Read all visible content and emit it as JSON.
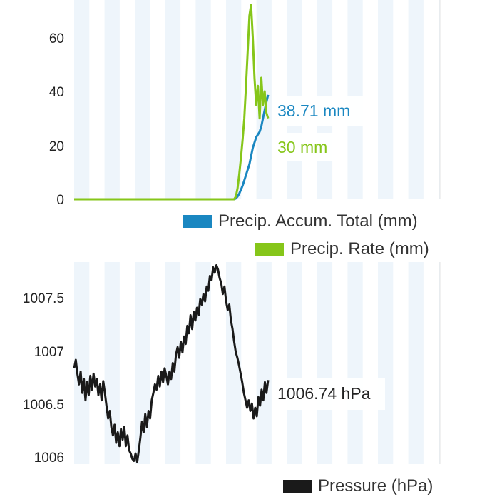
{
  "chart_data": [
    {
      "type": "line",
      "title": "",
      "xlabel": "",
      "ylabel": "",
      "ylim": [
        0,
        72
      ],
      "yticks": [
        "0",
        "20",
        "40",
        "60"
      ],
      "grid": "vertical alternating stripes",
      "legend_placement": "bottom-right",
      "series": [
        {
          "name": "Precip. Accum. Total (mm)",
          "color": "#1a87c1",
          "current_label": "38.71 mm",
          "values": [
            0,
            0,
            0,
            0,
            0,
            0,
            0,
            0,
            0,
            0,
            0,
            0,
            0,
            0,
            0,
            0,
            0,
            0,
            0,
            0,
            0,
            0,
            0,
            0,
            0,
            0,
            0,
            0,
            0,
            0,
            0,
            0,
            0,
            0,
            0,
            0,
            0,
            0,
            0,
            0,
            0,
            0,
            0,
            0,
            0,
            0,
            0,
            0,
            0,
            0,
            0,
            0,
            0,
            0,
            0,
            0,
            0,
            0,
            0,
            0,
            0,
            0,
            0,
            0,
            0,
            0,
            0,
            0,
            0,
            0,
            0,
            0,
            0,
            0,
            0,
            0,
            0,
            0,
            0,
            0,
            0,
            0,
            0,
            0,
            0,
            0,
            0,
            0,
            0,
            0,
            0,
            0,
            0,
            0,
            0,
            0.3,
            1,
            2,
            3.5,
            5,
            7,
            9,
            11,
            13,
            16,
            19,
            21,
            23,
            24,
            25,
            27,
            30,
            33,
            36,
            38.71
          ]
        },
        {
          "name": "Precip. Rate (mm)",
          "color": "#86c61a",
          "current_label": "30 mm",
          "values": [
            0,
            0,
            0,
            0,
            0,
            0,
            0,
            0,
            0,
            0,
            0,
            0,
            0,
            0,
            0,
            0,
            0,
            0,
            0,
            0,
            0,
            0,
            0,
            0,
            0,
            0,
            0,
            0,
            0,
            0,
            0,
            0,
            0,
            0,
            0,
            0,
            0,
            0,
            0,
            0,
            0,
            0,
            0,
            0,
            0,
            0,
            0,
            0,
            0,
            0,
            0,
            0,
            0,
            0,
            0,
            0,
            0,
            0,
            0,
            0,
            0,
            0,
            0,
            0,
            0,
            0,
            0,
            0,
            0,
            0,
            0,
            0,
            0,
            0,
            0,
            0,
            0,
            0,
            0,
            0,
            0,
            0,
            0,
            0,
            0,
            0,
            0,
            0,
            0,
            0,
            0,
            0,
            0,
            0,
            0,
            1,
            4,
            9,
            15,
            22,
            30,
            42,
            55,
            68,
            72,
            60,
            45,
            35,
            42,
            30,
            45,
            35,
            40,
            32,
            30
          ]
        }
      ]
    },
    {
      "type": "line",
      "title": "",
      "xlabel": "",
      "ylabel": "",
      "ylim": [
        1005.95,
        1007.85
      ],
      "yticks": [
        "1006",
        "1006.5",
        "1007",
        "1007.5"
      ],
      "grid": "vertical alternating stripes",
      "legend_placement": "bottom-right",
      "series": [
        {
          "name": "Pressure (hPa)",
          "color": "#1a1a1a",
          "current_label": "1006.74 hPa",
          "values": [
            1006.85,
            1006.93,
            1006.8,
            1006.7,
            1006.82,
            1006.62,
            1006.75,
            1006.55,
            1006.72,
            1006.6,
            1006.78,
            1006.65,
            1006.8,
            1006.68,
            1006.75,
            1006.6,
            1006.7,
            1006.55,
            1006.73,
            1006.62,
            1006.5,
            1006.38,
            1006.45,
            1006.3,
            1006.22,
            1006.32,
            1006.15,
            1006.25,
            1006.12,
            1006.28,
            1006.18,
            1006.3,
            1006.12,
            1006.22,
            1006.08,
            1006.05,
            1006,
            1005.98,
            1006.05,
            1005.97,
            1006.08,
            1006.2,
            1006.35,
            1006.25,
            1006.42,
            1006.3,
            1006.45,
            1006.38,
            1006.55,
            1006.62,
            1006.7,
            1006.65,
            1006.78,
            1006.68,
            1006.82,
            1006.72,
            1006.85,
            1006.78,
            1006.7,
            1006.82,
            1006.75,
            1006.9,
            1006.82,
            1006.98,
            1007.05,
            1006.95,
            1007.1,
            1007.0,
            1007.15,
            1007.08,
            1007.25,
            1007.18,
            1007.35,
            1007.22,
            1007.38,
            1007.3,
            1007.42,
            1007.35,
            1007.5,
            1007.45,
            1007.55,
            1007.48,
            1007.62,
            1007.58,
            1007.72,
            1007.68,
            1007.8,
            1007.75,
            1007.82,
            1007.78,
            1007.7,
            1007.65,
            1007.55,
            1007.62,
            1007.48,
            1007.4,
            1007.45,
            1007.3,
            1007.22,
            1007.1,
            1007.0,
            1006.95,
            1006.88,
            1006.8,
            1006.72,
            1006.62,
            1006.55,
            1006.48,
            1006.55,
            1006.45,
            1006.52,
            1006.38,
            1006.48,
            1006.4,
            1006.58,
            1006.5,
            1006.65,
            1006.55,
            1006.72,
            1006.62,
            1006.74
          ]
        }
      ]
    }
  ]
}
